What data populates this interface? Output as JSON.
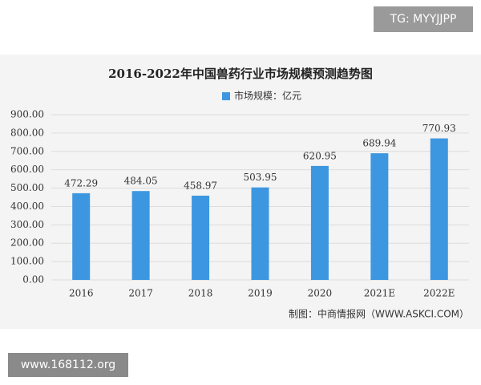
{
  "overlay": {
    "tag": "TG: MYYJJPP",
    "site": "www.168112.org"
  },
  "chart_data": {
    "type": "bar",
    "title": "2016-2022年中国兽药行业市场规模预测趋势图",
    "source": "制图：中商情报网（WWW.ASKCI.COM）",
    "categories": [
      "2016",
      "2017",
      "2018",
      "2019",
      "2020",
      "2021E",
      "2022E"
    ],
    "series": [
      {
        "name": "市场规模：亿元",
        "color": "#3d97e0",
        "values": [
          472.29,
          484.05,
          458.97,
          503.95,
          620.95,
          689.94,
          770.93
        ]
      }
    ],
    "ylim": [
      0,
      900
    ],
    "yticks": [
      {
        "value": 0,
        "label": "0.00"
      },
      {
        "value": 100,
        "label": "100.00"
      },
      {
        "value": 200,
        "label": "200.00"
      },
      {
        "value": 300,
        "label": "300.00"
      },
      {
        "value": 400,
        "label": "400.00"
      },
      {
        "value": 500,
        "label": "500.00"
      },
      {
        "value": 600,
        "label": "600.00"
      },
      {
        "value": 700,
        "label": "700.00"
      },
      {
        "value": 800,
        "label": "800.00"
      },
      {
        "value": 900,
        "label": "900.00"
      }
    ],
    "grid": true
  }
}
